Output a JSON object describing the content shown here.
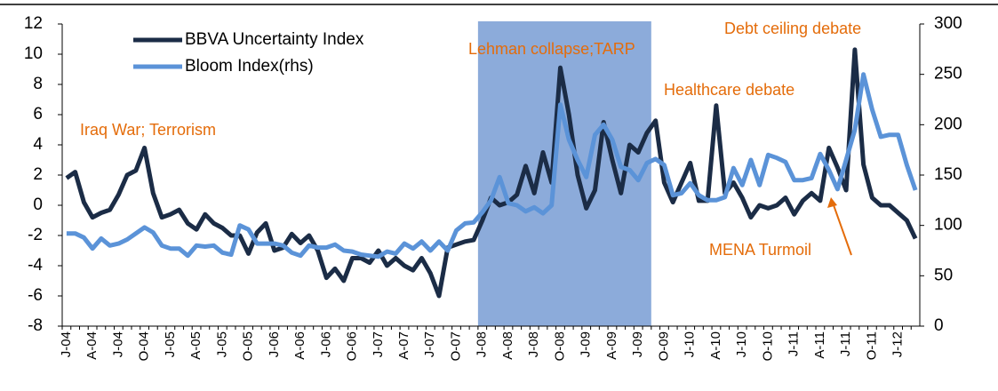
{
  "chart_data": {
    "type": "line",
    "categories": [
      "J-04",
      null,
      null,
      "A-04",
      null,
      null,
      "J-04",
      null,
      null,
      "O-04",
      null,
      null,
      "J-05",
      null,
      null,
      "A-05",
      null,
      null,
      "J-05",
      null,
      null,
      "O-05",
      null,
      null,
      "J-06",
      null,
      null,
      "A-06",
      null,
      null,
      "J-06",
      null,
      null,
      "O-06",
      null,
      null,
      "J-07",
      null,
      null,
      "A-07",
      null,
      null,
      "J-07",
      null,
      null,
      "O-07",
      null,
      null,
      "J-08",
      null,
      null,
      "A-08",
      null,
      null,
      "J-08",
      null,
      null,
      "O-08",
      null,
      null,
      "J-09",
      null,
      null,
      "A-09",
      null,
      null,
      "J-09",
      null,
      null,
      "O-09",
      null,
      null,
      "J-10",
      null,
      null,
      "A-10",
      null,
      null,
      "J-10",
      null,
      null,
      "O-10",
      null,
      null,
      "J-11",
      null,
      null,
      "A-11",
      null,
      null,
      "J-11",
      null,
      null,
      "O-11",
      null,
      null,
      "J-12",
      null,
      null
    ],
    "series": [
      {
        "name": "BBVA Uncertainty Index",
        "color": "#1b2c46",
        "axis": "y",
        "values": [
          1.8,
          2.2,
          0.2,
          -0.8,
          -0.5,
          -0.3,
          0.7,
          2.0,
          2.3,
          3.8,
          0.8,
          -0.8,
          -0.6,
          -0.3,
          -1.2,
          -1.6,
          -0.6,
          -1.2,
          -1.5,
          -2.0,
          -2.0,
          -3.2,
          -1.8,
          -1.2,
          -3.0,
          -2.8,
          -1.9,
          -2.5,
          -2.0,
          -3.0,
          -4.8,
          -4.2,
          -5.0,
          -3.5,
          -3.5,
          -3.8,
          -3.0,
          -4.0,
          -3.5,
          -4.0,
          -4.3,
          -3.5,
          -4.5,
          -6.0,
          -2.8,
          -2.6,
          -2.4,
          -2.3,
          -1.0,
          0.5,
          0.0,
          0.2,
          0.7,
          2.6,
          0.8,
          3.5,
          1.5,
          9.1,
          6.0,
          2.0,
          -0.2,
          1.0,
          5.5,
          3.0,
          0.8,
          4.0,
          3.5,
          4.8,
          5.6,
          1.5,
          0.2,
          1.5,
          2.8,
          0.3,
          0.3,
          6.6,
          0.8,
          1.5,
          0.5,
          -0.8,
          0.0,
          -0.2,
          0.0,
          0.5,
          -0.6,
          0.3,
          0.8,
          0.3,
          3.8,
          2.5,
          1.0,
          10.3,
          2.7,
          0.5,
          0.0,
          0.0,
          -0.5,
          -1.0,
          -2.2
        ]
      },
      {
        "name": "Bloom Index(rhs)",
        "color": "#5b93d8",
        "axis": "y2",
        "values": [
          92,
          92,
          88,
          77,
          87,
          80,
          82,
          86,
          92,
          98,
          93,
          80,
          77,
          77,
          70,
          80,
          79,
          80,
          73,
          71,
          100,
          96,
          82,
          82,
          82,
          80,
          73,
          70,
          80,
          78,
          78,
          81,
          75,
          74,
          71,
          70,
          69,
          74,
          72,
          82,
          77,
          84,
          75,
          84,
          75,
          95,
          102,
          103,
          113,
          125,
          148,
          122,
          120,
          114,
          118,
          112,
          120,
          220,
          185,
          165,
          148,
          190,
          200,
          185,
          158,
          155,
          145,
          162,
          166,
          160,
          130,
          132,
          142,
          130,
          125,
          125,
          128,
          157,
          140,
          165,
          140,
          170,
          167,
          163,
          145,
          145,
          147,
          171,
          155,
          136,
          165,
          195,
          250,
          215,
          188,
          190,
          190,
          160,
          135
        ]
      }
    ],
    "ylim": [
      -8,
      12
    ],
    "yticks": [
      -8,
      -6,
      -4,
      -2,
      0,
      2,
      4,
      6,
      8,
      10,
      12
    ],
    "y2lim": [
      0,
      300
    ],
    "y2ticks": [
      0,
      50,
      100,
      150,
      200,
      250,
      300
    ],
    "shaded_span": [
      48,
      67
    ],
    "shade_color": "#7fa2d6",
    "annotations": [
      "Iraq War; Terrorism",
      "Lehman collapse;TARP",
      "Healthcare debate",
      "Debt ceiling debate",
      "MENA Turmoil"
    ],
    "annotation_color": "#e46c0a",
    "grid": false
  }
}
